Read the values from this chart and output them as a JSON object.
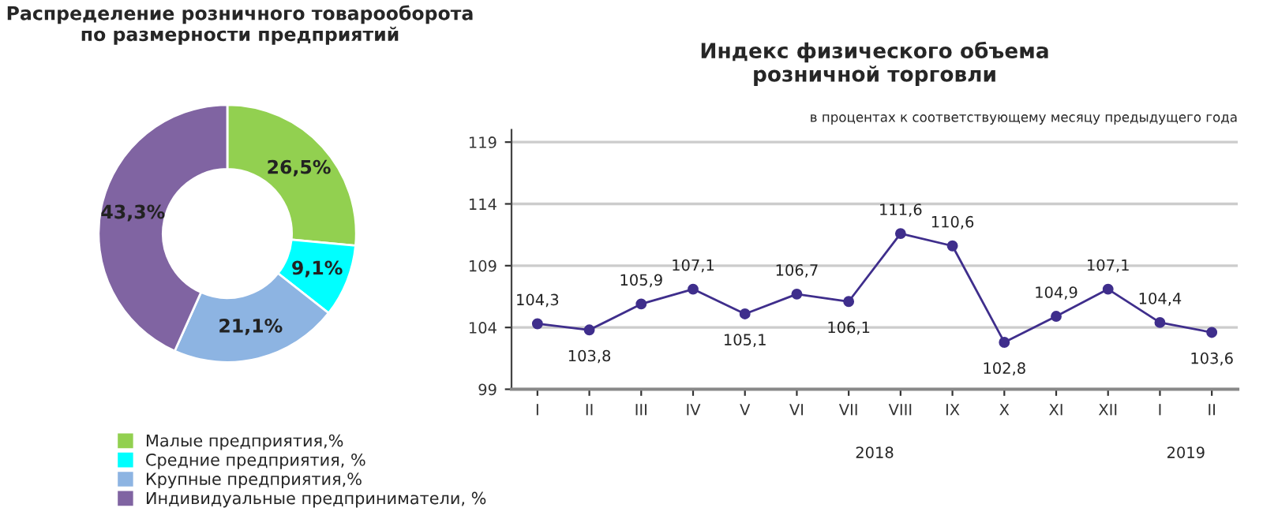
{
  "chart_data": [
    {
      "type": "donut",
      "title": "Распределение розничного товарооборота\nпо размерности предприятий",
      "categories": [
        "Малые предприятия,%",
        "Средние предприятия, %",
        "Крупные предприятия,%",
        "Индивидуальные предприниматели, %"
      ],
      "values": [
        26.5,
        9.1,
        21.1,
        43.3
      ],
      "value_labels": [
        "26,5%",
        "9,1%",
        "21,1%",
        "43,3%"
      ],
      "colors": [
        "#92d050",
        "#00ffff",
        "#8db4e2",
        "#8064a2"
      ],
      "legend": "bottom"
    },
    {
      "type": "line",
      "title": "Индекс физического объема\nрозничной торговли",
      "subtitle": "в процентах к соответствующему месяцу предыдущего года",
      "categories": [
        "I",
        "II",
        "III",
        "IV",
        "V",
        "VI",
        "VII",
        "VIII",
        "IX",
        "X",
        "XI",
        "XII",
        "I",
        "II"
      ],
      "series": [
        {
          "color": "#3f2e8c",
          "values": [
            104.3,
            103.8,
            105.9,
            107.1,
            105.1,
            106.7,
            106.1,
            111.6,
            110.6,
            102.8,
            104.9,
            107.1,
            104.4,
            103.6
          ],
          "value_labels": [
            "104,3",
            "103,8",
            "105,9",
            "107,1",
            "105,1",
            "106,7",
            "106,1",
            "111,6",
            "110,6",
            "102,8",
            "104,9",
            "107,1",
            "104,4",
            "103,6"
          ]
        }
      ],
      "annotations": [
        "2018",
        "2019"
      ],
      "ylim": [
        99,
        120
      ],
      "yticks": [
        99,
        104,
        109,
        114,
        119
      ],
      "grid": "y",
      "marker": "circle",
      "line_style": "solid"
    }
  ]
}
